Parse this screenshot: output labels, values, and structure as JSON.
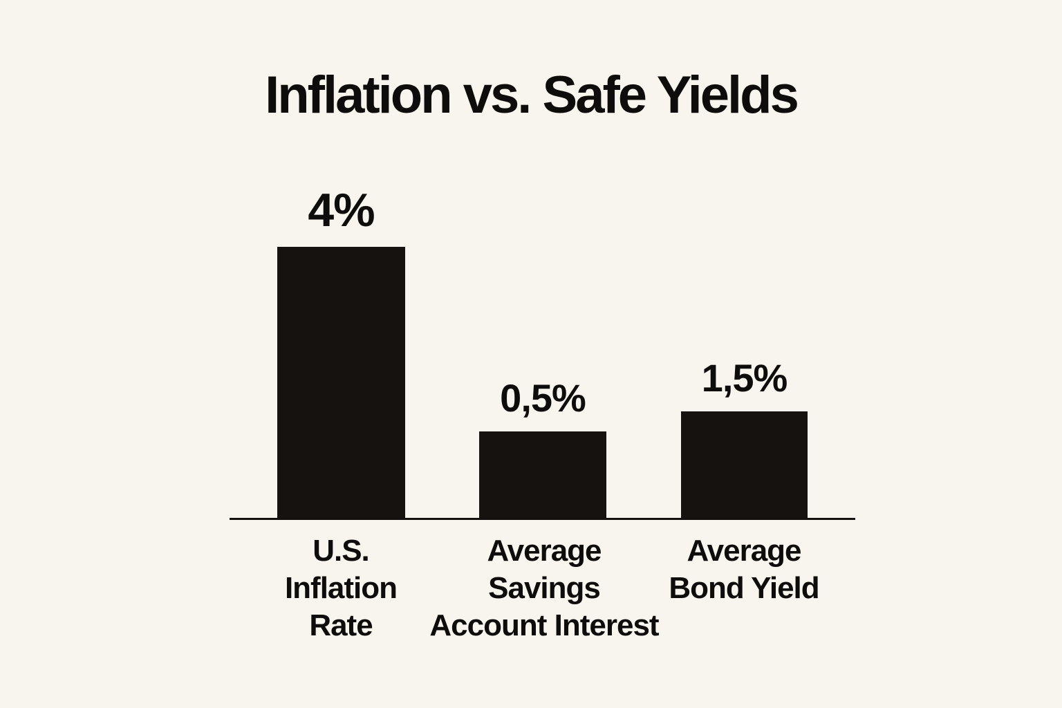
{
  "chart_data": {
    "type": "bar",
    "title": "Inflation vs. Safe Yields",
    "categories": [
      "U.S. Inflation Rate",
      "Average Savings Account Interest",
      "Average Bond Yield"
    ],
    "values": [
      4,
      0.5,
      1.5
    ],
    "value_labels": [
      "4%",
      "0,5%",
      "1,5%"
    ],
    "xlabel": "",
    "ylabel": "",
    "ylim": [
      0,
      4.5
    ],
    "grid": false,
    "legend": false,
    "bar_color": "#151210",
    "background_color": "#f8f5ef",
    "axis_color": "#13100d"
  },
  "title": "Inflation vs. Safe Yields",
  "bars": [
    {
      "value_label": "4%",
      "label_lines": [
        "U.S.",
        "Inflation",
        "Rate"
      ]
    },
    {
      "value_label": "0,5%",
      "label_lines": [
        "Average",
        "Savings",
        "Account Interest"
      ]
    },
    {
      "value_label": "1,5%",
      "label_lines": [
        "Average",
        "Bond Yield"
      ]
    }
  ]
}
